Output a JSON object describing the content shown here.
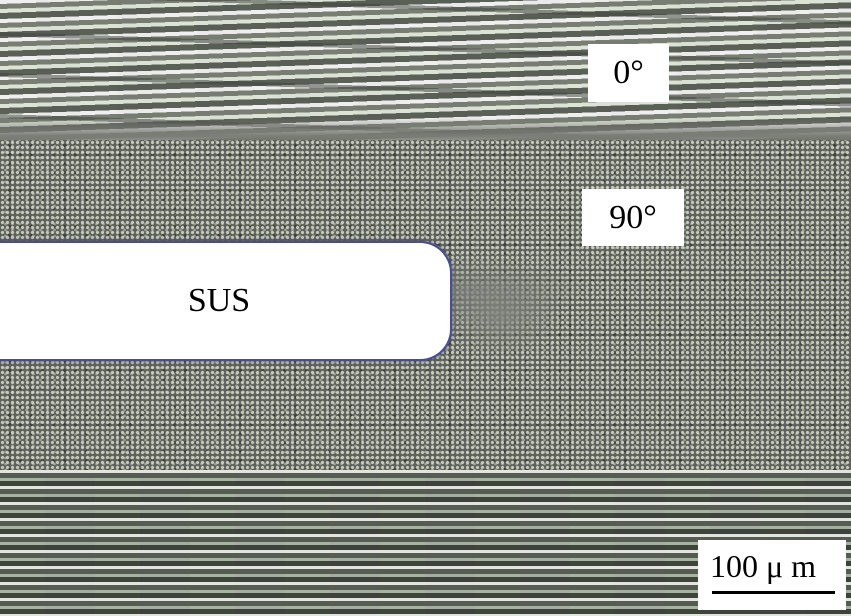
{
  "labels": {
    "top_ply": "0°",
    "middle_ply": "90°",
    "insert": "SUS"
  },
  "scale_bar": {
    "label": "100 μ m"
  },
  "colors": {
    "label_background": "#ffffff",
    "label_text": "#000000",
    "insert_fill": "#ffffff",
    "insert_outline": "#4a4f8a"
  }
}
